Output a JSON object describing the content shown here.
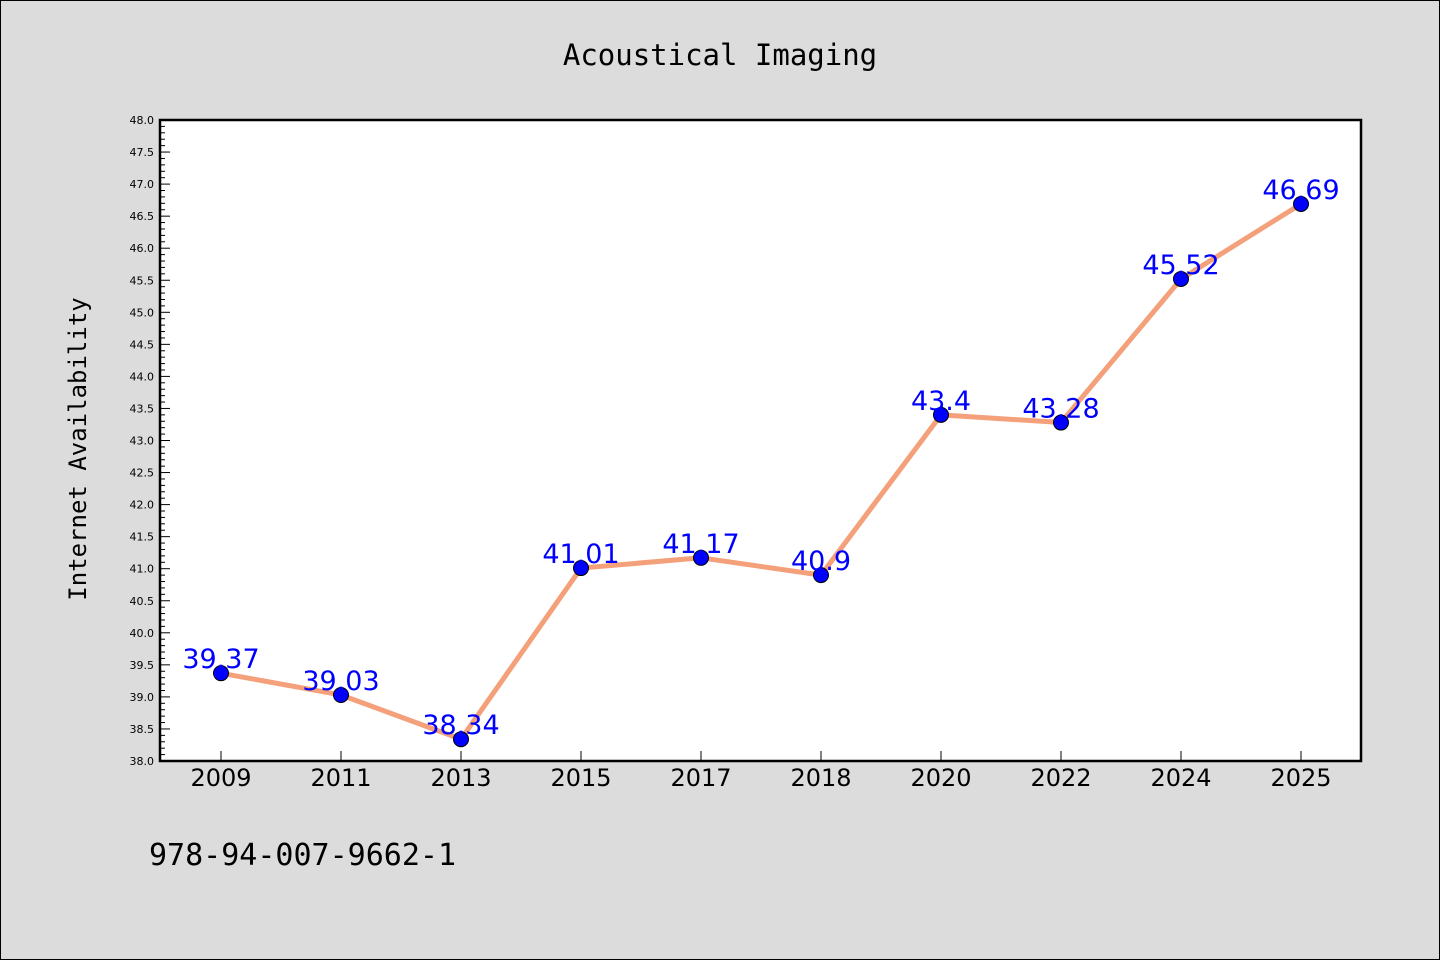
{
  "chart_data": {
    "type": "line",
    "title": "Acoustical Imaging",
    "xlabel": "",
    "ylabel": "Internet Availability",
    "categories": [
      "2009",
      "2011",
      "2013",
      "2015",
      "2017",
      "2018",
      "2020",
      "2022",
      "2024",
      "2025"
    ],
    "values": [
      39.37,
      39.03,
      38.34,
      41.01,
      41.17,
      40.9,
      43.4,
      43.28,
      45.52,
      46.69
    ],
    "data_labels": [
      "39.37",
      "39.03",
      "38.34",
      "41.01",
      "41.17",
      "40.9",
      "43.4",
      "43.28",
      "45.52",
      "46.69"
    ],
    "ylim": [
      38.0,
      48.0
    ],
    "yticks": [
      "38.0",
      "38.5",
      "39.0",
      "39.5",
      "40.0",
      "40.5",
      "41.0",
      "41.5",
      "42.0",
      "42.5",
      "43.0",
      "43.5",
      "44.0",
      "44.5",
      "45.0",
      "45.5",
      "46.0",
      "46.5",
      "47.0",
      "47.5",
      "48.0"
    ],
    "grid": false,
    "legend": "none",
    "colors": {
      "line": "#f4a07a",
      "marker": "#0000ff",
      "data_label": "#0000ff",
      "background": "#dcdcdc",
      "plot_background": "#ffffff"
    }
  },
  "annotation": "978-94-007-9662-1"
}
